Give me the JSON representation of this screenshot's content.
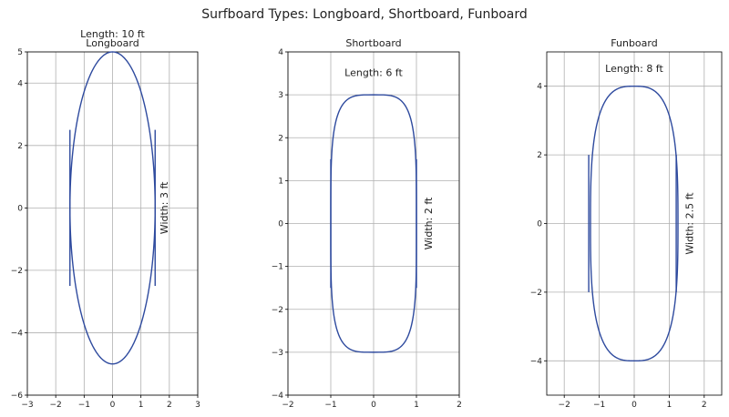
{
  "title": "Surfboard Types: Longboard, Shortboard, Funboard",
  "chart_data": [
    {
      "type": "line",
      "title": "Longboard",
      "xlim": [
        -3,
        3
      ],
      "ylim": [
        -6,
        5
      ],
      "xticks": [
        -3,
        -2,
        -1,
        0,
        1,
        2,
        3
      ],
      "yticks": [
        -6,
        -4,
        -2,
        0,
        2,
        4,
        5
      ],
      "grid": true,
      "series": [
        {
          "shape": "ellipse",
          "half_width": 1.5,
          "half_length": 5.0,
          "exponent": 2
        },
        {
          "shape": "segment",
          "points": [
            [
              -1.5,
              -2.5
            ],
            [
              -1.5,
              2.5
            ]
          ]
        },
        {
          "shape": "segment",
          "points": [
            [
              1.5,
              -2.5
            ],
            [
              1.5,
              2.5
            ]
          ]
        }
      ],
      "annotations": [
        {
          "text": "Length: 10 ft",
          "x": 0,
          "y": 5.55,
          "rotation": 0
        },
        {
          "text": "Width: 3 ft",
          "x": 1.85,
          "y": 0,
          "rotation": 90
        }
      ],
      "color": "#2e4a9e"
    },
    {
      "type": "line",
      "title": "Shortboard",
      "xlim": [
        -2,
        2
      ],
      "ylim": [
        -4,
        4
      ],
      "xticks": [
        -2,
        -1,
        0,
        1,
        2
      ],
      "yticks": [
        -4,
        -3,
        -2,
        -1,
        0,
        1,
        2,
        3,
        4
      ],
      "grid": true,
      "series": [
        {
          "shape": "superellipse",
          "half_width": 1.0,
          "half_length": 3.0,
          "exponent": 4
        },
        {
          "shape": "segment",
          "points": [
            [
              -1.0,
              -1.5
            ],
            [
              -1.0,
              1.5
            ]
          ]
        },
        {
          "shape": "segment",
          "points": [
            [
              1.0,
              -1.5
            ],
            [
              1.0,
              1.5
            ]
          ]
        }
      ],
      "annotations": [
        {
          "text": "Length: 6 ft",
          "x": 0,
          "y": 3.5,
          "rotation": 0
        },
        {
          "text": "Width: 2 ft",
          "x": 1.3,
          "y": 0,
          "rotation": 90
        }
      ],
      "color": "#2e4a9e"
    },
    {
      "type": "line",
      "title": "Funboard",
      "xlim": [
        -2.5,
        2.5
      ],
      "ylim": [
        -5,
        5
      ],
      "xticks": [
        -2,
        -1,
        0,
        1,
        2
      ],
      "yticks": [
        -4,
        -2,
        0,
        2,
        4
      ],
      "grid": true,
      "series": [
        {
          "shape": "superellipse",
          "half_width": 1.25,
          "half_length": 4.0,
          "exponent": 3
        },
        {
          "shape": "segment",
          "points": [
            [
              -1.3,
              -2.0
            ],
            [
              -1.3,
              2.0
            ]
          ]
        },
        {
          "shape": "segment",
          "points": [
            [
              1.2,
              -2.0
            ],
            [
              1.2,
              2.0
            ]
          ]
        }
      ],
      "annotations": [
        {
          "text": "Length: 8 ft",
          "x": 0,
          "y": 4.5,
          "rotation": 0
        },
        {
          "text": "Width: 2.5 ft",
          "x": 1.6,
          "y": 0,
          "rotation": 90
        }
      ],
      "color": "#2e4a9e"
    }
  ]
}
